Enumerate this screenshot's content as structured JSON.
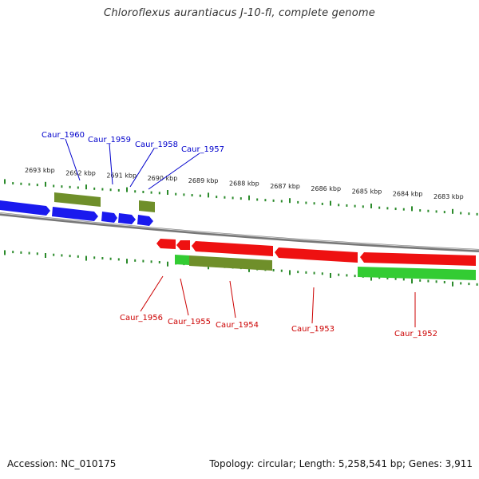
{
  "title": "Chloroflexus aurantiacus J-10-fl, complete genome",
  "colors": {
    "forward_label": "#0000cc",
    "reverse_label": "#cc0000",
    "tick": "#2a8a2a",
    "backbone": "#888888",
    "blue": "#1a1aee",
    "red": "#ee1111",
    "olive": "#6f8f2a",
    "green": "#33cc33"
  },
  "ruler_labels": [
    "2693 kbp",
    "2692 kbp",
    "2691 kbp",
    "2690 kbp",
    "2689 kbp",
    "2688 kbp",
    "2687 kbp",
    "2686 kbp",
    "2685 kbp",
    "2684 kbp",
    "2683 kbp"
  ],
  "gene_labels_forward": [
    "Caur_1960",
    "Caur_1959",
    "Caur_1958",
    "Caur_1957"
  ],
  "gene_labels_reverse": [
    "Caur_1956",
    "Caur_1955",
    "Caur_1954",
    "Caur_1953",
    "Caur_1952"
  ],
  "footer": {
    "accession": "Accession: NC_010175",
    "topology": "Topology: circular; Length: 5,258,541 bp; Genes: 3,911"
  }
}
